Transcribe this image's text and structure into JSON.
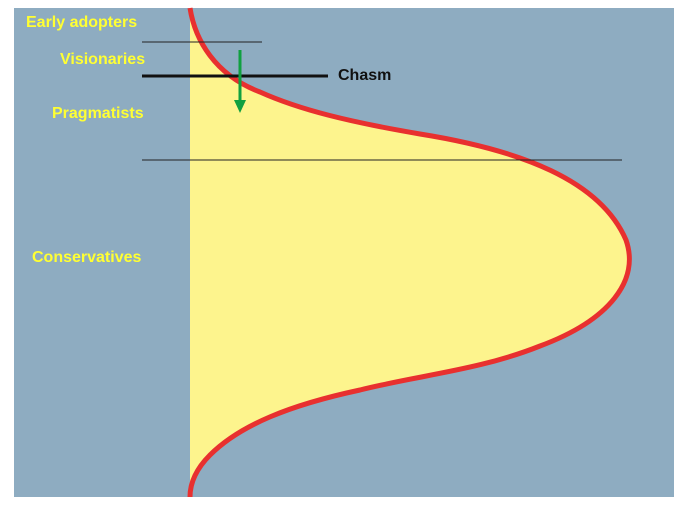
{
  "segments": [
    "Early adopters",
    "Visionaries",
    "Pragmatists",
    "Conservatives"
  ],
  "chasm_label": "Chasm"
}
